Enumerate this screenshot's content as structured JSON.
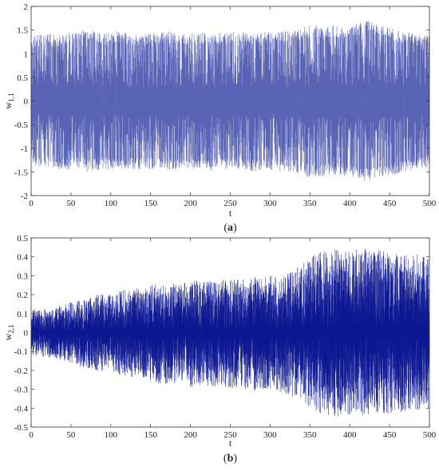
{
  "chart_data": [
    {
      "type": "line",
      "panel_label": "a",
      "xlabel": "t",
      "ylabel_main": "w",
      "ylabel_sub": "1,1",
      "xlim": [
        0,
        500
      ],
      "ylim": [
        -2,
        2
      ],
      "xticks": [
        0,
        50,
        100,
        150,
        200,
        250,
        300,
        350,
        400,
        450,
        500
      ],
      "yticks": [
        -2,
        -1.5,
        -1,
        -0.5,
        0,
        0.5,
        1,
        1.5,
        2
      ],
      "yticklabels": [
        "-2",
        "-1.5",
        "-1",
        "-0.5",
        "0",
        "0.5",
        "1",
        "1.5",
        "2"
      ],
      "grid": false,
      "series": [
        {
          "color": "#3a47a8",
          "envelope": {
            "t": [
              0,
              10,
              20,
              30,
              40,
              50,
              60,
              70,
              80,
              90,
              100,
              110,
              120,
              130,
              140,
              150,
              160,
              170,
              180,
              190,
              200,
              210,
              220,
              230,
              240,
              250,
              260,
              270,
              280,
              290,
              300,
              310,
              320,
              330,
              340,
              350,
              360,
              370,
              380,
              390,
              400,
              410,
              420,
              430,
              440,
              450,
              460,
              470,
              480,
              490,
              500
            ],
            "upper": [
              1.35,
              1.4,
              1.45,
              1.4,
              1.4,
              1.45,
              1.45,
              1.55,
              1.5,
              1.45,
              1.45,
              1.5,
              1.45,
              1.4,
              1.4,
              1.45,
              1.45,
              1.5,
              1.45,
              1.45,
              1.45,
              1.45,
              1.45,
              1.45,
              1.45,
              1.45,
              1.5,
              1.45,
              1.45,
              1.5,
              1.45,
              1.45,
              1.5,
              1.5,
              1.55,
              1.6,
              1.6,
              1.55,
              1.6,
              1.55,
              1.6,
              1.65,
              1.7,
              1.7,
              1.6,
              1.55,
              1.5,
              1.45,
              1.45,
              1.4,
              1.4
            ],
            "lower": [
              -1.35,
              -1.4,
              -1.4,
              -1.45,
              -1.45,
              -1.45,
              -1.45,
              -1.5,
              -1.45,
              -1.5,
              -1.45,
              -1.45,
              -1.45,
              -1.45,
              -1.45,
              -1.45,
              -1.45,
              -1.45,
              -1.5,
              -1.45,
              -1.45,
              -1.45,
              -1.45,
              -1.5,
              -1.45,
              -1.45,
              -1.45,
              -1.5,
              -1.5,
              -1.45,
              -1.45,
              -1.5,
              -1.5,
              -1.5,
              -1.55,
              -1.65,
              -1.6,
              -1.6,
              -1.55,
              -1.6,
              -1.65,
              -1.7,
              -1.7,
              -1.65,
              -1.6,
              -1.6,
              -1.55,
              -1.5,
              -1.5,
              -1.45,
              -1.45
            ]
          }
        }
      ]
    },
    {
      "type": "line",
      "panel_label": "b",
      "xlabel": "t",
      "ylabel_main": "w",
      "ylabel_sub": "2,1",
      "xlim": [
        0,
        500
      ],
      "ylim": [
        -0.5,
        0.5
      ],
      "xticks": [
        0,
        50,
        100,
        150,
        200,
        250,
        300,
        350,
        400,
        450,
        500
      ],
      "yticks": [
        -0.5,
        -0.4,
        -0.3,
        -0.2,
        -0.1,
        0,
        0.1,
        0.2,
        0.3,
        0.4,
        0.5
      ],
      "yticklabels": [
        "-0.5",
        "-0.4",
        "-0.3",
        "-0.2",
        "-0.1",
        "0",
        "0.1",
        "0.2",
        "0.3",
        "0.4",
        "0.5"
      ],
      "grid": false,
      "series": [
        {
          "color": "#0c1690",
          "envelope": {
            "t": [
              0,
              10,
              20,
              30,
              40,
              50,
              60,
              70,
              80,
              90,
              100,
              110,
              120,
              130,
              140,
              150,
              160,
              170,
              180,
              190,
              200,
              210,
              220,
              230,
              240,
              250,
              260,
              270,
              280,
              290,
              300,
              310,
              320,
              330,
              340,
              350,
              360,
              370,
              380,
              390,
              400,
              410,
              420,
              430,
              440,
              450,
              460,
              470,
              480,
              490,
              500
            ],
            "upper": [
              0.12,
              0.13,
              0.12,
              0.13,
              0.15,
              0.16,
              0.17,
              0.18,
              0.2,
              0.21,
              0.2,
              0.22,
              0.23,
              0.24,
              0.22,
              0.25,
              0.26,
              0.25,
              0.27,
              0.26,
              0.27,
              0.28,
              0.27,
              0.28,
              0.28,
              0.29,
              0.28,
              0.29,
              0.3,
              0.31,
              0.3,
              0.31,
              0.32,
              0.33,
              0.36,
              0.4,
              0.42,
              0.44,
              0.45,
              0.44,
              0.45,
              0.44,
              0.45,
              0.43,
              0.44,
              0.43,
              0.42,
              0.41,
              0.42,
              0.41,
              0.4
            ],
            "lower": [
              -0.12,
              -0.13,
              -0.13,
              -0.14,
              -0.15,
              -0.16,
              -0.18,
              -0.19,
              -0.2,
              -0.21,
              -0.21,
              -0.22,
              -0.23,
              -0.24,
              -0.24,
              -0.26,
              -0.27,
              -0.28,
              -0.28,
              -0.27,
              -0.29,
              -0.28,
              -0.28,
              -0.29,
              -0.28,
              -0.3,
              -0.29,
              -0.3,
              -0.31,
              -0.31,
              -0.3,
              -0.31,
              -0.33,
              -0.34,
              -0.37,
              -0.4,
              -0.42,
              -0.44,
              -0.45,
              -0.44,
              -0.44,
              -0.45,
              -0.44,
              -0.43,
              -0.44,
              -0.43,
              -0.42,
              -0.42,
              -0.41,
              -0.41,
              -0.4
            ]
          }
        }
      ]
    }
  ]
}
